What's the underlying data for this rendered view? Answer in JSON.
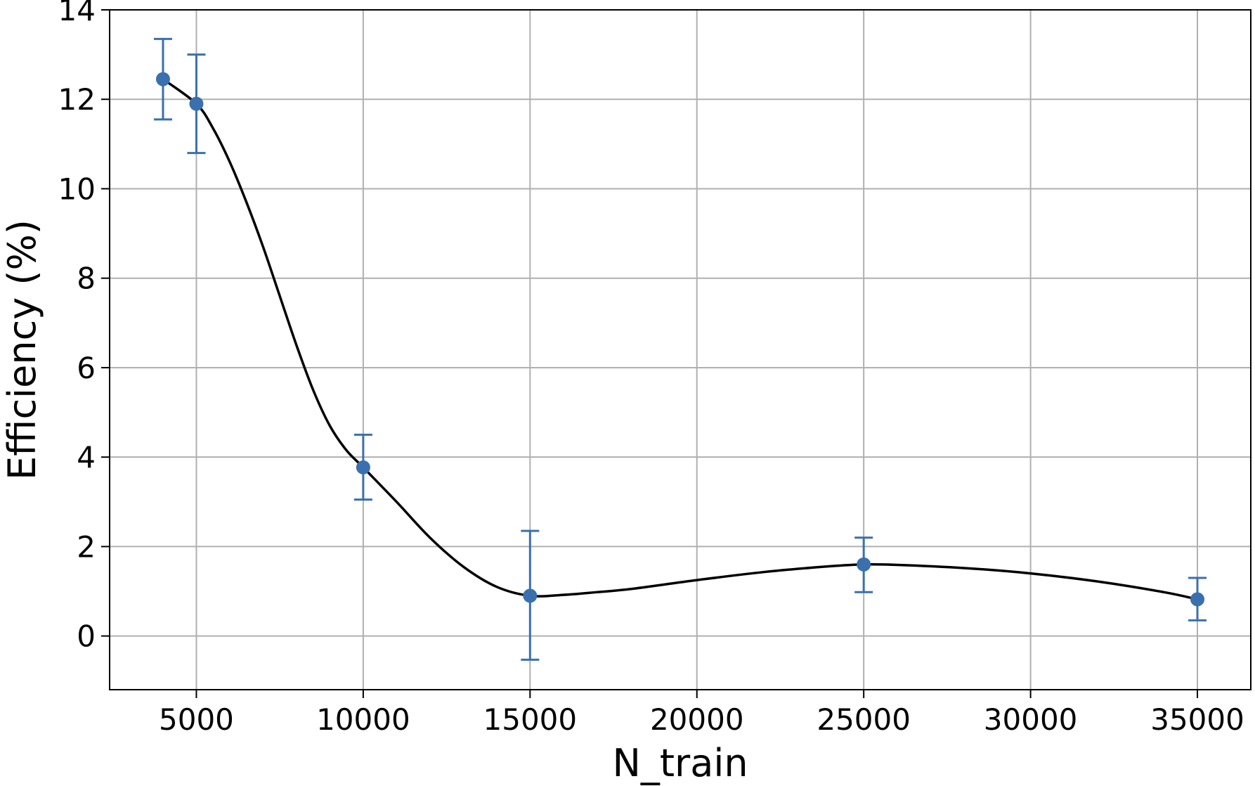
{
  "chart_data": {
    "type": "scatter",
    "title": "",
    "xlabel": "N_train",
    "ylabel": "Efficiency (%)",
    "xlim": [
      2400,
      36600
    ],
    "ylim": [
      -1.2,
      14
    ],
    "xticks": [
      5000,
      10000,
      15000,
      20000,
      25000,
      30000,
      35000
    ],
    "yticks": [
      0,
      2,
      4,
      6,
      8,
      10,
      12,
      14
    ],
    "grid": true,
    "legend": "none",
    "marker_color": "#3a70ad",
    "curve_color": "#000000",
    "points": [
      {
        "x": 4000,
        "y": 12.45,
        "yerr_low": 11.55,
        "yerr_high": 13.35
      },
      {
        "x": 5000,
        "y": 11.9,
        "yerr_low": 10.8,
        "yerr_high": 13.0
      },
      {
        "x": 10000,
        "y": 3.77,
        "yerr_low": 3.05,
        "yerr_high": 4.5
      },
      {
        "x": 15000,
        "y": 0.9,
        "yerr_low": -0.53,
        "yerr_high": 2.35
      },
      {
        "x": 25000,
        "y": 1.6,
        "yerr_low": 0.98,
        "yerr_high": 2.2
      },
      {
        "x": 35000,
        "y": 0.82,
        "yerr_low": 0.35,
        "yerr_high": 1.3
      }
    ],
    "fit_curve": {
      "x": [
        4000,
        5000,
        5500,
        6000,
        6500,
        7000,
        7500,
        8000,
        8500,
        9000,
        9500,
        10000,
        11000,
        12000,
        13000,
        14000,
        15000,
        16000,
        17000,
        18000,
        20000,
        22000,
        24000,
        25000,
        26000,
        28000,
        30000,
        32000,
        34000,
        35000
      ],
      "y": [
        12.45,
        11.9,
        11.35,
        10.6,
        9.7,
        8.7,
        7.6,
        6.5,
        5.5,
        4.7,
        4.15,
        3.77,
        3.0,
        2.2,
        1.55,
        1.1,
        0.9,
        0.92,
        0.98,
        1.05,
        1.25,
        1.43,
        1.56,
        1.6,
        1.59,
        1.52,
        1.4,
        1.22,
        0.98,
        0.82
      ]
    }
  }
}
